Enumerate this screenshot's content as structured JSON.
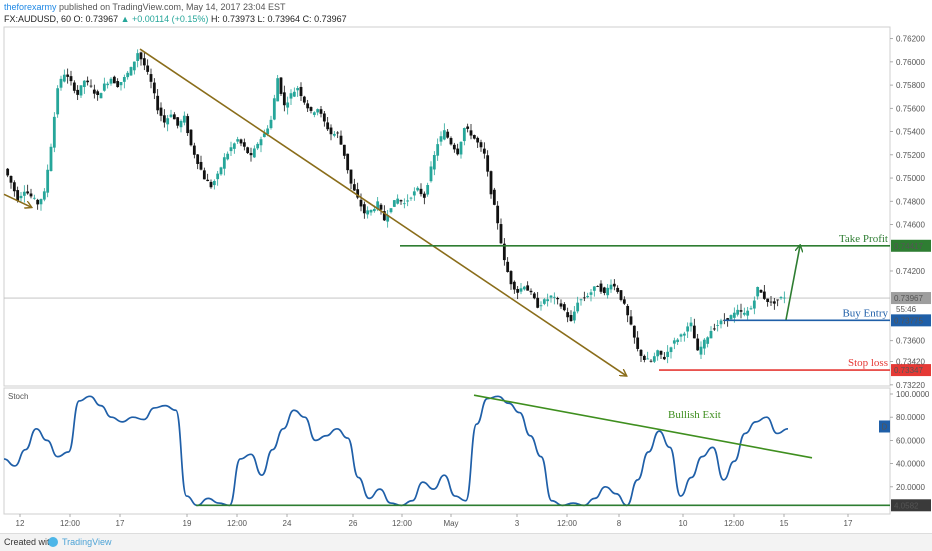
{
  "header": {
    "user": "theforexarmy",
    "published": "published on TradingView.com, May 14, 2017 23:04 EST",
    "symbol": "FX:AUDUSD, 60",
    "o": "O: 0.73967",
    "change": "▲ +0.00114 (+0.15%)",
    "h": "H: 0.73973",
    "l": "L: 0.73964",
    "c": "C: 0.73967"
  },
  "footer": {
    "created": "Created with",
    "brand": "TradingView"
  },
  "colors": {
    "candle_up": "#26a69a",
    "candle_down": "#111111",
    "trend_arrow": "#8a6d1a",
    "take_profit": "#2e7d32",
    "buy_entry": "#1f5fa8",
    "stop_loss": "#e53935",
    "stoch_line": "#1f5fa8",
    "bullish_exit": "#3f8f1f",
    "oversold_line": "#2e7d32"
  },
  "chart_data": [
    {
      "type": "candlestick",
      "ylim": [
        0.7321,
        0.763
      ],
      "yticks": [
        "0.76200",
        "0.76000",
        "0.75800",
        "0.75600",
        "0.75400",
        "0.75200",
        "0.75000",
        "0.74800",
        "0.74600",
        "0.74200",
        "0.73600",
        "0.73420",
        "0.73220"
      ],
      "xticks": [
        "12",
        "12:00",
        "17",
        "19",
        "12:00",
        "24",
        "26",
        "12:00",
        "May",
        "3",
        "12:00",
        "8",
        "10",
        "12:00",
        "15",
        "17"
      ],
      "last_price": "0.73967",
      "countdown": "55:46",
      "close_path": [
        0.7508,
        0.7496,
        0.7482,
        0.749,
        0.7484,
        0.7478,
        0.7487,
        0.7528,
        0.7578,
        0.759,
        0.7582,
        0.7572,
        0.7584,
        0.7578,
        0.757,
        0.758,
        0.7586,
        0.758,
        0.7586,
        0.7594,
        0.7608,
        0.7597,
        0.7582,
        0.756,
        0.7548,
        0.7556,
        0.7545,
        0.7552,
        0.7528,
        0.7514,
        0.75,
        0.7493,
        0.7502,
        0.7517,
        0.7526,
        0.7533,
        0.7526,
        0.7518,
        0.753,
        0.7538,
        0.755,
        0.7586,
        0.7562,
        0.7572,
        0.7578,
        0.7566,
        0.7556,
        0.756,
        0.7548,
        0.7538,
        0.7538,
        0.752,
        0.7495,
        0.7482,
        0.747,
        0.7472,
        0.7478,
        0.7464,
        0.7476,
        0.7482,
        0.7478,
        0.7485,
        0.749,
        0.7484,
        0.7508,
        0.753,
        0.754,
        0.753,
        0.7522,
        0.7543,
        0.7538,
        0.753,
        0.752,
        0.7488,
        0.7462,
        0.7428,
        0.741,
        0.7402,
        0.7408,
        0.74,
        0.739,
        0.7394,
        0.7398,
        0.7394,
        0.7386,
        0.7376,
        0.7394,
        0.7397,
        0.7402,
        0.7408,
        0.74,
        0.741,
        0.7403,
        0.739,
        0.7372,
        0.7352,
        0.7344,
        0.7342,
        0.735,
        0.7345,
        0.7356,
        0.7362,
        0.7368,
        0.7374,
        0.735,
        0.7359,
        0.7369,
        0.7374,
        0.7378,
        0.7381,
        0.7385,
        0.7383,
        0.7388,
        0.7405,
        0.7397,
        0.7392,
        0.7395,
        0.7398
      ],
      "levels": [
        {
          "name": "Take Profit",
          "value": "0.74417"
        },
        {
          "name": "Buy Entry",
          "value": "0.73775"
        },
        {
          "name": "Stop loss",
          "value": "0.73347"
        }
      ]
    },
    {
      "type": "line",
      "title": "Stoch",
      "ylim": [
        0,
        100
      ],
      "yticks": [
        "100.0000",
        "80.0000",
        "60.0000",
        "40.0000",
        "20.0000"
      ],
      "current_value": "4.0582",
      "badge": "D",
      "annotation": "Bullish Exit",
      "values": [
        44,
        38,
        52,
        70,
        60,
        46,
        50,
        94,
        98,
        90,
        80,
        76,
        80,
        78,
        88,
        90,
        86,
        12,
        4,
        10,
        6,
        4,
        44,
        48,
        30,
        52,
        70,
        86,
        80,
        60,
        64,
        70,
        62,
        28,
        10,
        18,
        6,
        4,
        8,
        24,
        18,
        30,
        12,
        8,
        74,
        96,
        98,
        92,
        84,
        64,
        46,
        8,
        4,
        6,
        4,
        10,
        20,
        14,
        4,
        26,
        50,
        68,
        54,
        12,
        28,
        46,
        54,
        26,
        42,
        66,
        76,
        80,
        66,
        70
      ]
    }
  ]
}
